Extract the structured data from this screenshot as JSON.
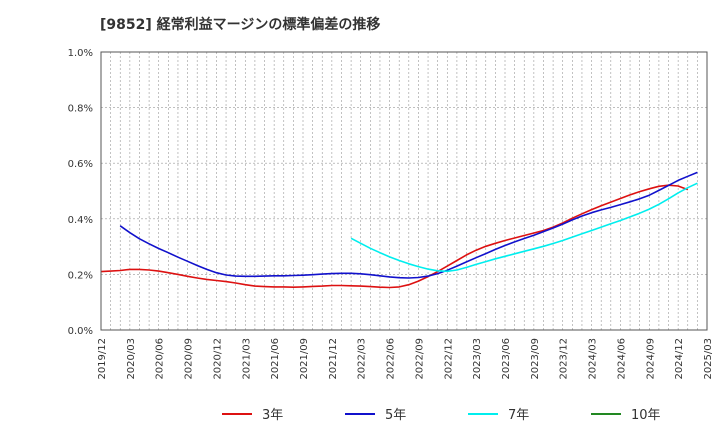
{
  "chart_data": {
    "type": "line",
    "title": "[9852]  経常利益マージンの標準偏差の推移",
    "xlabel": "",
    "ylabel": "",
    "ylim": [
      0,
      1.0
    ],
    "y_unit": "%",
    "y_ticks": [
      0,
      0.2,
      0.4,
      0.6,
      0.8,
      1.0
    ],
    "y_tick_labels": [
      "0.0%",
      "0.2%",
      "0.4%",
      "0.6%",
      "0.8%",
      "1.0%"
    ],
    "x_tick_labels": [
      "2019/12",
      "2020/03",
      "2020/06",
      "2020/09",
      "2020/12",
      "2021/03",
      "2021/06",
      "2021/09",
      "2021/12",
      "2022/03",
      "2022/06",
      "2022/09",
      "2022/12",
      "2023/03",
      "2023/06",
      "2023/09",
      "2023/12",
      "2024/03",
      "2024/06",
      "2024/09",
      "2024/12",
      "2025/03"
    ],
    "grid": true,
    "legend_position": "bottom",
    "series": [
      {
        "name": "3年",
        "color": "#dd1111",
        "points": [
          [
            "2019/12",
            0.21
          ],
          [
            "2020/01",
            0.212
          ],
          [
            "2020/02",
            0.214
          ],
          [
            "2020/03",
            0.218
          ],
          [
            "2020/04",
            0.218
          ],
          [
            "2020/05",
            0.216
          ],
          [
            "2020/06",
            0.212
          ],
          [
            "2020/07",
            0.206
          ],
          [
            "2020/08",
            0.2
          ],
          [
            "2020/09",
            0.193
          ],
          [
            "2020/10",
            0.187
          ],
          [
            "2020/11",
            0.182
          ],
          [
            "2020/12",
            0.178
          ],
          [
            "2021/01",
            0.174
          ],
          [
            "2021/02",
            0.169
          ],
          [
            "2021/03",
            0.163
          ],
          [
            "2021/04",
            0.158
          ],
          [
            "2021/05",
            0.156
          ],
          [
            "2021/06",
            0.155
          ],
          [
            "2021/07",
            0.155
          ],
          [
            "2021/08",
            0.154
          ],
          [
            "2021/09",
            0.155
          ],
          [
            "2021/10",
            0.157
          ],
          [
            "2021/11",
            0.158
          ],
          [
            "2021/12",
            0.16
          ],
          [
            "2022/01",
            0.16
          ],
          [
            "2022/02",
            0.159
          ],
          [
            "2022/03",
            0.158
          ],
          [
            "2022/04",
            0.156
          ],
          [
            "2022/05",
            0.154
          ],
          [
            "2022/06",
            0.153
          ],
          [
            "2022/07",
            0.155
          ],
          [
            "2022/08",
            0.163
          ],
          [
            "2022/09",
            0.176
          ],
          [
            "2022/10",
            0.192
          ],
          [
            "2022/11",
            0.21
          ],
          [
            "2022/12",
            0.23
          ],
          [
            "2023/01",
            0.25
          ],
          [
            "2023/02",
            0.27
          ],
          [
            "2023/03",
            0.287
          ],
          [
            "2023/04",
            0.301
          ],
          [
            "2023/05",
            0.312
          ],
          [
            "2023/06",
            0.322
          ],
          [
            "2023/07",
            0.331
          ],
          [
            "2023/08",
            0.34
          ],
          [
            "2023/09",
            0.349
          ],
          [
            "2023/10",
            0.358
          ],
          [
            "2023/11",
            0.37
          ],
          [
            "2023/12",
            0.385
          ],
          [
            "2024/01",
            0.402
          ],
          [
            "2024/02",
            0.418
          ],
          [
            "2024/03",
            0.433
          ],
          [
            "2024/04",
            0.447
          ],
          [
            "2024/05",
            0.46
          ],
          [
            "2024/06",
            0.473
          ],
          [
            "2024/07",
            0.486
          ],
          [
            "2024/08",
            0.498
          ],
          [
            "2024/09",
            0.508
          ],
          [
            "2024/10",
            0.517
          ],
          [
            "2024/11",
            0.521
          ],
          [
            "2024/12",
            0.518
          ],
          [
            "2025/01",
            0.505
          ]
        ]
      },
      {
        "name": "5年",
        "color": "#1111cc",
        "points": [
          [
            "2020/02",
            0.375
          ],
          [
            "2020/03",
            0.35
          ],
          [
            "2020/04",
            0.328
          ],
          [
            "2020/05",
            0.31
          ],
          [
            "2020/06",
            0.293
          ],
          [
            "2020/07",
            0.278
          ],
          [
            "2020/08",
            0.262
          ],
          [
            "2020/09",
            0.247
          ],
          [
            "2020/10",
            0.232
          ],
          [
            "2020/11",
            0.218
          ],
          [
            "2020/12",
            0.206
          ],
          [
            "2021/01",
            0.198
          ],
          [
            "2021/02",
            0.194
          ],
          [
            "2021/03",
            0.193
          ],
          [
            "2021/04",
            0.193
          ],
          [
            "2021/05",
            0.194
          ],
          [
            "2021/06",
            0.195
          ],
          [
            "2021/07",
            0.195
          ],
          [
            "2021/08",
            0.196
          ],
          [
            "2021/09",
            0.197
          ],
          [
            "2021/10",
            0.199
          ],
          [
            "2021/11",
            0.201
          ],
          [
            "2021/12",
            0.203
          ],
          [
            "2022/01",
            0.204
          ],
          [
            "2022/02",
            0.204
          ],
          [
            "2022/03",
            0.202
          ],
          [
            "2022/04",
            0.199
          ],
          [
            "2022/05",
            0.195
          ],
          [
            "2022/06",
            0.191
          ],
          [
            "2022/07",
            0.188
          ],
          [
            "2022/08",
            0.187
          ],
          [
            "2022/09",
            0.189
          ],
          [
            "2022/10",
            0.194
          ],
          [
            "2022/11",
            0.203
          ],
          [
            "2022/12",
            0.215
          ],
          [
            "2023/01",
            0.23
          ],
          [
            "2023/02",
            0.245
          ],
          [
            "2023/03",
            0.26
          ],
          [
            "2023/04",
            0.275
          ],
          [
            "2023/05",
            0.29
          ],
          [
            "2023/06",
            0.304
          ],
          [
            "2023/07",
            0.317
          ],
          [
            "2023/08",
            0.329
          ],
          [
            "2023/09",
            0.341
          ],
          [
            "2023/10",
            0.354
          ],
          [
            "2023/11",
            0.367
          ],
          [
            "2023/12",
            0.381
          ],
          [
            "2024/01",
            0.396
          ],
          [
            "2024/02",
            0.41
          ],
          [
            "2024/03",
            0.422
          ],
          [
            "2024/04",
            0.432
          ],
          [
            "2024/05",
            0.441
          ],
          [
            "2024/06",
            0.451
          ],
          [
            "2024/07",
            0.461
          ],
          [
            "2024/08",
            0.472
          ],
          [
            "2024/09",
            0.485
          ],
          [
            "2024/10",
            0.502
          ],
          [
            "2024/11",
            0.52
          ],
          [
            "2024/12",
            0.538
          ],
          [
            "2025/01",
            0.553
          ],
          [
            "2025/02",
            0.567
          ]
        ]
      },
      {
        "name": "7年",
        "color": "#00eeee",
        "points": [
          [
            "2022/02",
            0.33
          ],
          [
            "2022/03",
            0.312
          ],
          [
            "2022/04",
            0.294
          ],
          [
            "2022/05",
            0.278
          ],
          [
            "2022/06",
            0.263
          ],
          [
            "2022/07",
            0.25
          ],
          [
            "2022/08",
            0.238
          ],
          [
            "2022/09",
            0.228
          ],
          [
            "2022/10",
            0.219
          ],
          [
            "2022/11",
            0.213
          ],
          [
            "2022/12",
            0.211
          ],
          [
            "2023/01",
            0.216
          ],
          [
            "2023/02",
            0.225
          ],
          [
            "2023/03",
            0.236
          ],
          [
            "2023/04",
            0.246
          ],
          [
            "2023/05",
            0.256
          ],
          [
            "2023/06",
            0.265
          ],
          [
            "2023/07",
            0.274
          ],
          [
            "2023/08",
            0.283
          ],
          [
            "2023/09",
            0.292
          ],
          [
            "2023/10",
            0.301
          ],
          [
            "2023/11",
            0.311
          ],
          [
            "2023/12",
            0.322
          ],
          [
            "2024/01",
            0.334
          ],
          [
            "2024/02",
            0.346
          ],
          [
            "2024/03",
            0.358
          ],
          [
            "2024/04",
            0.37
          ],
          [
            "2024/05",
            0.382
          ],
          [
            "2024/06",
            0.394
          ],
          [
            "2024/07",
            0.407
          ],
          [
            "2024/08",
            0.42
          ],
          [
            "2024/09",
            0.435
          ],
          [
            "2024/10",
            0.452
          ],
          [
            "2024/11",
            0.472
          ],
          [
            "2024/12",
            0.493
          ],
          [
            "2025/01",
            0.512
          ],
          [
            "2025/02",
            0.528
          ]
        ]
      },
      {
        "name": "10年",
        "color": "#228822",
        "points": []
      }
    ]
  }
}
